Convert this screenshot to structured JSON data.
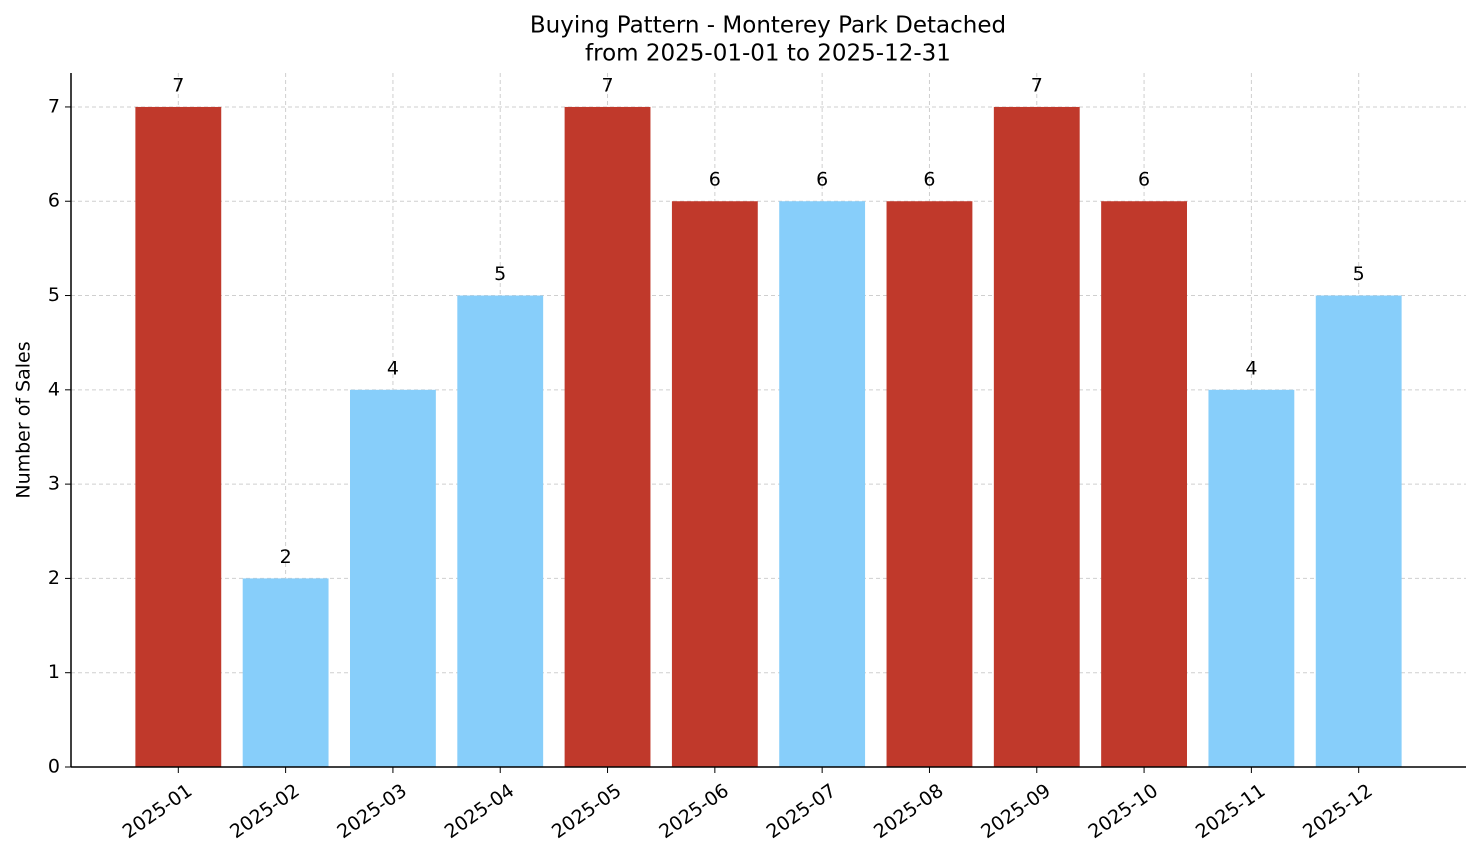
{
  "chart_data": {
    "type": "bar",
    "title": "Buying Pattern - Monterey Park Detached",
    "subtitle": "from 2025-01-01 to 2025-12-31",
    "y_label": "Number of Sales",
    "categories": [
      "2025-01",
      "2025-02",
      "2025-03",
      "2025-04",
      "2025-05",
      "2025-06",
      "2025-07",
      "2025-08",
      "2025-09",
      "2025-10",
      "2025-11",
      "2025-12"
    ],
    "values": [
      7,
      2,
      4,
      5,
      7,
      6,
      6,
      6,
      7,
      6,
      4,
      5
    ],
    "colors": [
      "#c0392b",
      "#87cefa",
      "#87cefa",
      "#87cefa",
      "#c0392b",
      "#c0392b",
      "#87cefa",
      "#c0392b",
      "#c0392b",
      "#c0392b",
      "#87cefa",
      "#87cefa"
    ],
    "ylim": [
      0,
      7.36
    ],
    "yticks": [
      0,
      1,
      2,
      3,
      4,
      5,
      6,
      7
    ],
    "grid": true
  }
}
